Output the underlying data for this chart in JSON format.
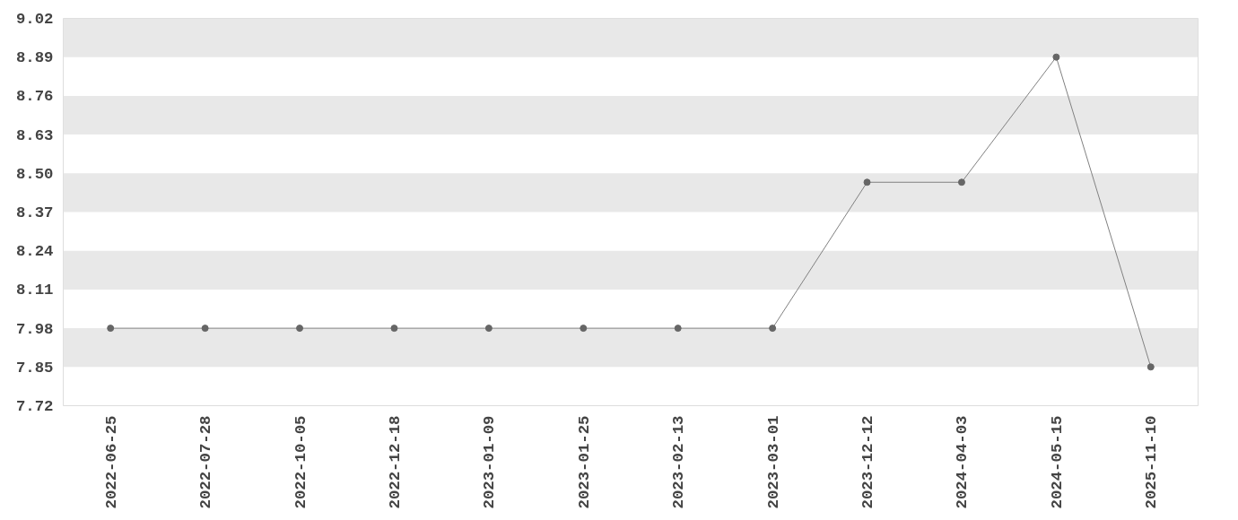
{
  "chart_data": {
    "type": "line",
    "categories": [
      "2022-06-25",
      "2022-07-28",
      "2022-10-05",
      "2022-12-18",
      "2023-01-09",
      "2023-01-25",
      "2023-02-13",
      "2023-03-01",
      "2023-12-12",
      "2024-04-03",
      "2024-05-15",
      "2025-11-10"
    ],
    "series": [
      {
        "color": "#808080",
        "values": [
          7.98,
          7.98,
          7.98,
          7.98,
          7.98,
          7.98,
          7.98,
          7.98,
          8.47,
          8.47,
          8.89,
          7.85
        ]
      }
    ],
    "ylim": [
      7.72,
      9.02
    ],
    "yticks": [
      7.72,
      7.85,
      7.98,
      8.11,
      8.24,
      8.37,
      {
        "value": 8.5,
        "label": "8.50"
      },
      8.63,
      8.76,
      8.89,
      9.02
    ],
    "bands": [
      {
        "axis": "y",
        "from": 7.85,
        "to": 7.98,
        "color": "#e8e8e8"
      },
      {
        "axis": "y",
        "from": 8.11,
        "to": 8.24,
        "color": "#e8e8e8"
      },
      {
        "axis": "y",
        "from": 8.37,
        "to": 8.5,
        "color": "#e8e8e8"
      },
      {
        "axis": "y",
        "from": 8.63,
        "to": 8.76,
        "color": "#e8e8e8"
      },
      {
        "axis": "y",
        "from": 8.89,
        "to": 9.02,
        "color": "#e8e8e8"
      }
    ],
    "marker": "circle",
    "line_style": "solid"
  }
}
